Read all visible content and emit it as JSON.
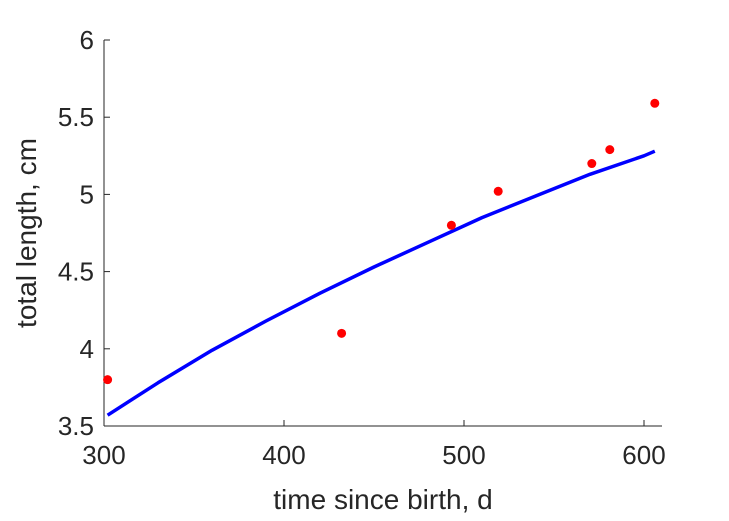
{
  "chart_data": {
    "type": "scatter",
    "title": "",
    "xlabel": "time since birth, d",
    "ylabel": "total length, cm",
    "xlim": [
      300,
      610
    ],
    "ylim": [
      3.5,
      6
    ],
    "grid": false,
    "x_ticks": [
      300,
      400,
      500,
      600
    ],
    "x_tick_labels": [
      "300",
      "400",
      "500",
      "600"
    ],
    "y_ticks": [
      3.5,
      4,
      4.5,
      5,
      5.5,
      6
    ],
    "y_tick_labels": [
      "3.5",
      "4",
      "4.5",
      "5",
      "5.5",
      "6"
    ],
    "series": [
      {
        "kind": "points",
        "color": "#ff0000",
        "x": [
          302,
          432,
          493,
          519,
          571,
          581,
          606
        ],
        "y": [
          3.8,
          4.1,
          4.8,
          5.02,
          5.2,
          5.29,
          5.59
        ]
      },
      {
        "kind": "line",
        "color": "#0000ff",
        "x": [
          302,
          330,
          360,
          390,
          420,
          450,
          480,
          510,
          540,
          570,
          600,
          606
        ],
        "y": [
          3.57,
          3.78,
          3.99,
          4.18,
          4.36,
          4.53,
          4.69,
          4.85,
          4.99,
          5.13,
          5.25,
          5.28
        ]
      }
    ]
  }
}
